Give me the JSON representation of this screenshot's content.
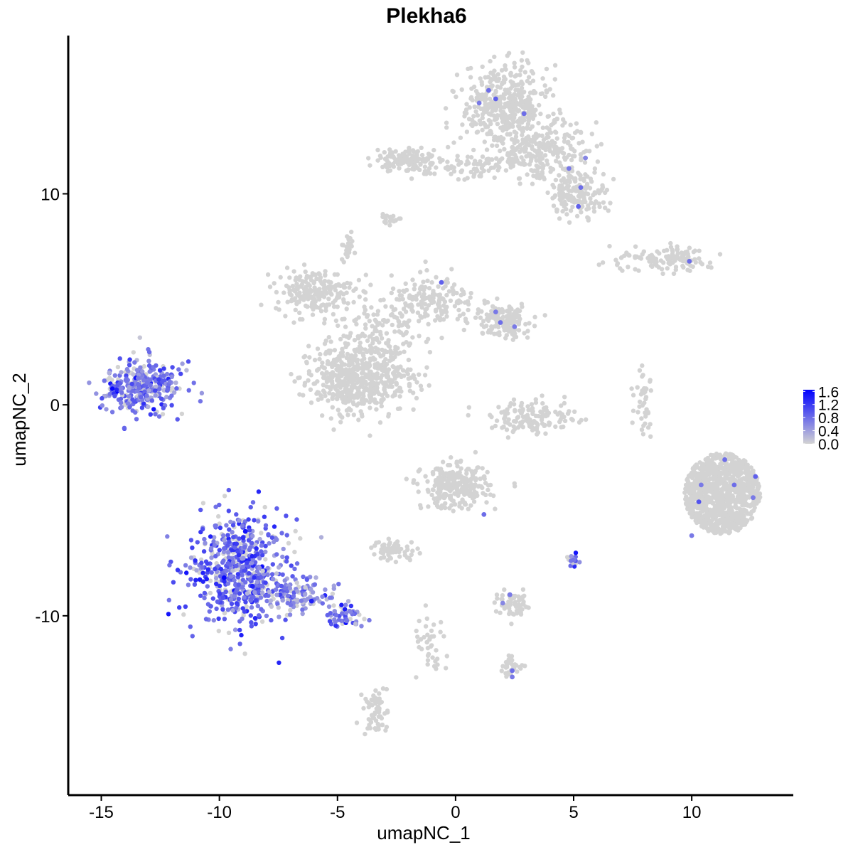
{
  "chart_data": {
    "type": "scatter",
    "title": "Plekha6",
    "xlabel": "umapNC_1",
    "ylabel": "umapNC_2",
    "xlim": [
      -16.4,
      14.3
    ],
    "ylim": [
      -18.5,
      17.5
    ],
    "x_ticks": [
      -15,
      -10,
      -5,
      0,
      5,
      10
    ],
    "x_tick_labels": [
      "-15",
      "-10",
      "-5",
      "0",
      "5",
      "10"
    ],
    "y_ticks": [
      -10,
      0,
      10
    ],
    "y_tick_labels": [
      "-10",
      "0",
      "10"
    ],
    "grid": false,
    "legend": {
      "placement": "right",
      "type": "colorbar",
      "labels": [
        "1.6",
        "1.2",
        "0.8",
        "0.4",
        "0.0"
      ],
      "range": [
        0,
        1.65
      ],
      "low_color": "#d3d3d3",
      "high_color": "#0000ff"
    },
    "colors": {
      "zero": "#d3d3d3",
      "high": "#0000ff"
    },
    "clusters": [
      {
        "center": [
          -13.2,
          0.9
        ],
        "spread": [
          0.8,
          0.6
        ],
        "n": 340,
        "mean_expr": 0.7,
        "shape": "blob"
      },
      {
        "center": [
          -9.2,
          -7.9
        ],
        "spread": [
          1.0,
          1.3
        ],
        "n": 600,
        "mean_expr": 0.85,
        "shape": "blob"
      },
      {
        "center": [
          -6.8,
          -9.0
        ],
        "spread": [
          0.9,
          0.45
        ],
        "n": 130,
        "mean_expr": 0.6,
        "shape": "blob"
      },
      {
        "center": [
          -4.7,
          -10.0
        ],
        "spread": [
          0.4,
          0.3
        ],
        "n": 50,
        "mean_expr": 0.8,
        "shape": "blob"
      },
      {
        "center": [
          -6.0,
          5.4
        ],
        "spread": [
          0.8,
          0.5
        ],
        "n": 200,
        "mean_expr": 0,
        "shape": "blob"
      },
      {
        "center": [
          -5.0,
          1.2
        ],
        "spread": [
          0.8,
          0.8
        ],
        "n": 240,
        "mean_expr": 0,
        "shape": "blob"
      },
      {
        "center": [
          -3.7,
          1.3
        ],
        "spread": [
          0.8,
          0.9
        ],
        "n": 260,
        "mean_expr": 0,
        "shape": "blob"
      },
      {
        "center": [
          -3.4,
          3.2
        ],
        "spread": [
          0.9,
          1.2
        ],
        "n": 160,
        "mean_expr": 0,
        "shape": "blob"
      },
      {
        "center": [
          -0.9,
          4.8
        ],
        "spread": [
          0.9,
          0.6
        ],
        "n": 170,
        "mean_expr": 0,
        "shape": "blob"
      },
      {
        "center": [
          2.0,
          4.0
        ],
        "spread": [
          0.6,
          0.4
        ],
        "n": 150,
        "mean_expr": 0,
        "shape": "blob"
      },
      {
        "center": [
          2.1,
          14.2
        ],
        "spread": [
          0.9,
          0.9
        ],
        "n": 420,
        "mean_expr": 0,
        "shape": "blob"
      },
      {
        "center": [
          3.6,
          12.0
        ],
        "spread": [
          1.0,
          0.7
        ],
        "n": 260,
        "mean_expr": 0,
        "shape": "blob"
      },
      {
        "center": [
          5.2,
          10.0
        ],
        "spread": [
          0.6,
          0.5
        ],
        "n": 160,
        "mean_expr": 0,
        "shape": "blob"
      },
      {
        "center": [
          -2.0,
          11.6
        ],
        "spread": [
          0.7,
          0.3
        ],
        "n": 130,
        "mean_expr": 0,
        "shape": "blob"
      },
      {
        "center": [
          0.8,
          11.3
        ],
        "spread": [
          0.9,
          0.3
        ],
        "n": 70,
        "mean_expr": 0,
        "shape": "blob"
      },
      {
        "center": [
          8.3,
          6.8
        ],
        "spread": [
          1.2,
          0.25
        ],
        "n": 90,
        "mean_expr": 0,
        "shape": "blob"
      },
      {
        "center": [
          9.5,
          7.0
        ],
        "spread": [
          0.4,
          0.25
        ],
        "n": 40,
        "mean_expr": 0,
        "shape": "blob"
      },
      {
        "center": [
          11.3,
          -4.2
        ],
        "spread": [
          1.0,
          1.2
        ],
        "n": 1000,
        "mean_expr": 0,
        "shape": "disc"
      },
      {
        "center": [
          0.0,
          -3.9
        ],
        "spread": [
          0.7,
          0.5
        ],
        "n": 280,
        "mean_expr": 0,
        "shape": "blob"
      },
      {
        "center": [
          -2.6,
          -6.9
        ],
        "spread": [
          0.5,
          0.25
        ],
        "n": 60,
        "mean_expr": 0,
        "shape": "blob"
      },
      {
        "center": [
          3.3,
          -0.6
        ],
        "spread": [
          0.9,
          0.4
        ],
        "n": 140,
        "mean_expr": 0,
        "shape": "blob"
      },
      {
        "center": [
          2.5,
          -9.5
        ],
        "spread": [
          0.4,
          0.3
        ],
        "n": 60,
        "mean_expr": 0,
        "shape": "blob"
      },
      {
        "center": [
          2.4,
          -12.4
        ],
        "spread": [
          0.3,
          0.2
        ],
        "n": 30,
        "mean_expr": 0,
        "shape": "blob"
      },
      {
        "center": [
          -3.4,
          -14.5
        ],
        "spread": [
          0.25,
          0.6
        ],
        "n": 60,
        "mean_expr": 0,
        "shape": "blob"
      },
      {
        "center": [
          -4.6,
          7.5
        ],
        "spread": [
          0.15,
          0.3
        ],
        "n": 25,
        "mean_expr": 0,
        "shape": "blob"
      },
      {
        "center": [
          -2.8,
          8.8
        ],
        "spread": [
          0.25,
          0.1
        ],
        "n": 20,
        "mean_expr": 0,
        "shape": "blob"
      },
      {
        "center": [
          8.0,
          0.3
        ],
        "spread": [
          0.2,
          0.9
        ],
        "n": 40,
        "mean_expr": 0,
        "shape": "blob"
      },
      {
        "center": [
          5.0,
          -7.4
        ],
        "spread": [
          0.12,
          0.2
        ],
        "n": 18,
        "mean_expr": 0.7,
        "shape": "blob"
      },
      {
        "center": [
          -1.0,
          -11.5
        ],
        "spread": [
          0.4,
          0.8
        ],
        "n": 40,
        "mean_expr": 0,
        "shape": "blob"
      },
      {
        "center": [
          -2.4,
          1.1
        ],
        "spread": [
          0.8,
          0.4
        ],
        "n": 30,
        "mean_expr": 0,
        "shape": "blob"
      }
    ],
    "highlighted_points": [
      {
        "x": 1.4,
        "y": 14.9,
        "value": 0.8
      },
      {
        "x": 1.0,
        "y": 14.3,
        "value": 0.7
      },
      {
        "x": 1.7,
        "y": 14.5,
        "value": 0.9
      },
      {
        "x": 2.9,
        "y": 13.8,
        "value": 0.8
      },
      {
        "x": 5.5,
        "y": 11.7,
        "value": 0.6
      },
      {
        "x": 4.8,
        "y": 11.2,
        "value": 0.7
      },
      {
        "x": 5.3,
        "y": 10.3,
        "value": 0.8
      },
      {
        "x": 5.2,
        "y": 9.4,
        "value": 0.9
      },
      {
        "x": 9.9,
        "y": 6.8,
        "value": 0.8
      },
      {
        "x": -0.6,
        "y": 5.8,
        "value": 0.9
      },
      {
        "x": 1.7,
        "y": 4.4,
        "value": 0.7
      },
      {
        "x": 1.9,
        "y": 3.9,
        "value": 0.8
      },
      {
        "x": 2.5,
        "y": 3.7,
        "value": 0.7
      },
      {
        "x": 11.4,
        "y": -2.6,
        "value": 0.8
      },
      {
        "x": 10.4,
        "y": -3.8,
        "value": 0.7
      },
      {
        "x": 10.3,
        "y": -4.6,
        "value": 1.0
      },
      {
        "x": 11.8,
        "y": -3.8,
        "value": 0.8
      },
      {
        "x": 12.7,
        "y": -3.4,
        "value": 0.9
      },
      {
        "x": 12.6,
        "y": -4.4,
        "value": 0.7
      },
      {
        "x": 10.0,
        "y": -6.2,
        "value": 0.7
      },
      {
        "x": 1.2,
        "y": -5.2,
        "value": 0.8
      },
      {
        "x": 2.3,
        "y": -9.0,
        "value": 0.7
      },
      {
        "x": 2.4,
        "y": -12.6,
        "value": 0.8
      },
      {
        "x": 2.4,
        "y": -12.9,
        "value": 0.7
      },
      {
        "x": 2.0,
        "y": -9.4,
        "value": 0.6
      },
      {
        "x": -9.8,
        "y": -8.2,
        "value": 1.6
      },
      {
        "x": -8.9,
        "y": -6.0,
        "value": 1.5
      },
      {
        "x": -6.1,
        "y": -9.3,
        "value": 1.4
      },
      {
        "x": -8.6,
        "y": -8.6,
        "value": 1.4
      },
      {
        "x": -9.0,
        "y": -6.3,
        "value": 1.3
      }
    ]
  }
}
